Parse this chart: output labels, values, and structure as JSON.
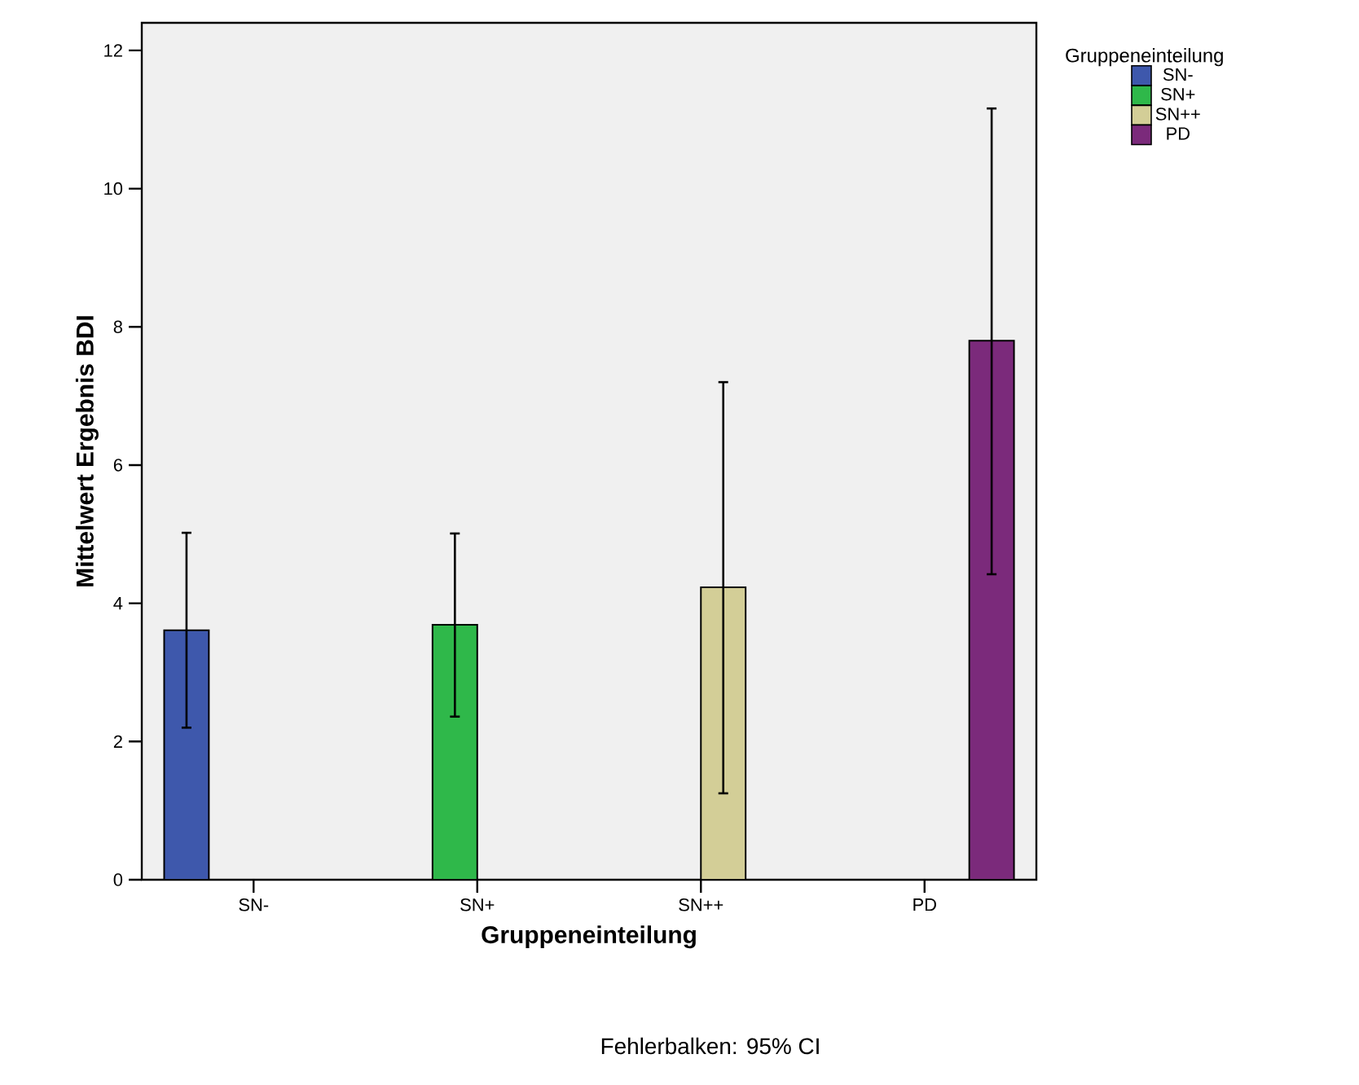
{
  "chart_data": {
    "type": "bar",
    "xlabel": "Gruppeneinteilung",
    "ylabel": "Mittelwert Ergebnis BDI",
    "legend_title": "Gruppeneinteilung",
    "legend": "top right",
    "grid": false,
    "categories": [
      "SN-",
      "SN+",
      "SN++",
      "PD"
    ],
    "series": [
      {
        "name": "SN-",
        "color": "#3e58ac",
        "values": [
          3.61,
          null,
          null,
          null
        ],
        "errors": [
          [
            2.2,
            5.02
          ],
          null,
          null,
          null
        ]
      },
      {
        "name": "SN+",
        "color": "#2fb84a",
        "values": [
          null,
          3.69,
          null,
          null
        ],
        "errors": [
          null,
          [
            2.36,
            5.01
          ],
          null,
          null
        ]
      },
      {
        "name": "SN++",
        "color": "#d3ce97",
        "values": [
          null,
          null,
          4.23,
          null
        ],
        "errors": [
          null,
          null,
          [
            1.25,
            7.2
          ],
          null
        ]
      },
      {
        "name": "PD",
        "color": "#7b2a7b",
        "values": [
          null,
          null,
          null,
          7.8
        ],
        "errors": [
          null,
          null,
          null,
          [
            4.42,
            11.16
          ]
        ]
      }
    ],
    "ylim": [
      0,
      12.4
    ],
    "yticks": [
      0,
      2,
      4,
      6,
      8,
      10,
      12
    ],
    "annotations": [
      "Fehlerbalken: 95% CI"
    ]
  }
}
